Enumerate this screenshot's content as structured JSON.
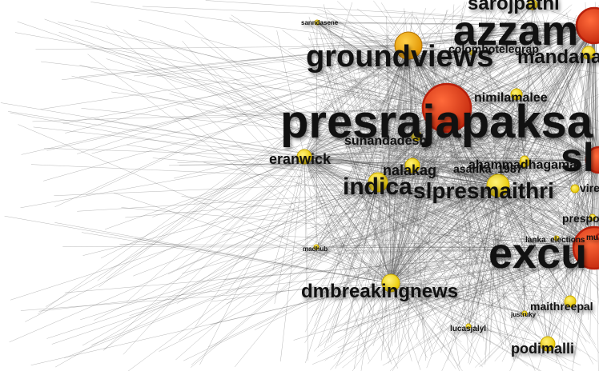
{
  "graph": {
    "colors": {
      "edge": "#555555",
      "node_yellow": "#f5e21b",
      "node_orange": "#f2a900",
      "node_red": "#e8401c",
      "node_dark_red": "#b8200c",
      "label": "#111111",
      "background": "#ffffff"
    },
    "nodes": [
      {
        "id": "presrajapaksa",
        "label": "presrajapaksa",
        "color": "red",
        "weight": 10
      },
      {
        "id": "azzam",
        "label": "azzam",
        "color": "red",
        "weight": 8
      },
      {
        "id": "excu",
        "label": "excu",
        "color": "red",
        "weight": 9
      },
      {
        "id": "sl",
        "label": "sl",
        "color": "red",
        "weight": 7
      },
      {
        "id": "saroj",
        "label": "sarojpathi",
        "color": "yellow",
        "weight": 4
      },
      {
        "id": "groundviews",
        "label": "groundviews",
        "color": "orange",
        "weight": 6
      },
      {
        "id": "mandana",
        "label": "mandana",
        "color": "yellow",
        "weight": 4
      },
      {
        "id": "colombotelegraph",
        "label": "colombotelegrap",
        "color": "yellow",
        "weight": 2
      },
      {
        "id": "nimilamalee",
        "label": "nimilamalee",
        "color": "yellow",
        "weight": 3
      },
      {
        "id": "sunandadesh",
        "label": "sunandadesh",
        "color": "yellow",
        "weight": 3
      },
      {
        "id": "eranwick",
        "label": "eranwick",
        "color": "yellow",
        "weight": 3
      },
      {
        "id": "nalakag",
        "label": "nalakag",
        "color": "yellow",
        "weight": 3
      },
      {
        "id": "asanka1987",
        "label": "asanka_1987",
        "color": "yellow",
        "weight": 2
      },
      {
        "id": "ahammadhagama",
        "label": "ahammadhagama",
        "color": "yellow",
        "weight": 2
      },
      {
        "id": "indica",
        "label": "indica",
        "color": "yellow",
        "weight": 5
      },
      {
        "id": "slpresmaithri",
        "label": "slpresmaithri",
        "color": "yellow",
        "weight": 5
      },
      {
        "id": "presport",
        "label": "prespo",
        "color": "yellow",
        "weight": 2
      },
      {
        "id": "dmbreakingnews",
        "label": "dmbreakingnews",
        "color": "yellow",
        "weight": 5
      },
      {
        "id": "maithreepala",
        "label": "maithreepal",
        "color": "yellow",
        "weight": 2
      },
      {
        "id": "lucasjalyl",
        "label": "lucasjalyl",
        "color": "yellow",
        "weight": 1
      },
      {
        "id": "podimalli",
        "label": "podimalli",
        "color": "yellow",
        "weight": 3
      },
      {
        "id": "lankaelections",
        "label": "lanka_elections",
        "color": "yellow",
        "weight": 1
      },
      {
        "id": "mu",
        "label": "mu",
        "color": "red",
        "weight": 1
      },
      {
        "id": "vire",
        "label": "vire",
        "color": "yellow",
        "weight": 1
      },
      {
        "id": "sanndasene",
        "label": "sanndasene",
        "color": "yellow",
        "weight": 1
      },
      {
        "id": "madhub",
        "label": "madhub",
        "color": "yellow",
        "weight": 1
      },
      {
        "id": "justruky",
        "label": "justruky",
        "color": "yellow",
        "weight": 1
      }
    ]
  }
}
